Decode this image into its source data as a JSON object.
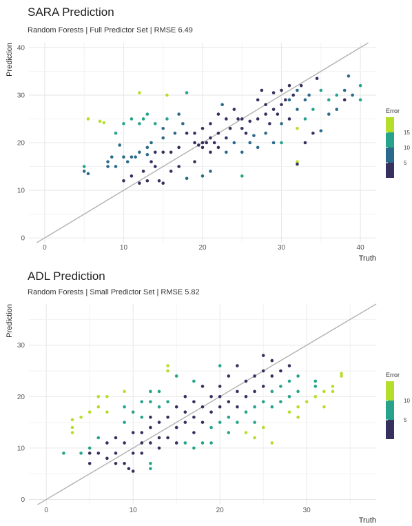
{
  "chart_data": [
    {
      "type": "scatter",
      "title": "SARA Prediction",
      "subtitle": "Random Forests | Full Predictor Set | RMSE 6.49",
      "xlabel": "Truth",
      "ylabel": "Prediction",
      "xlim": [
        -2,
        42
      ],
      "ylim": [
        -1,
        41
      ],
      "xticks": [
        0,
        10,
        20,
        30,
        40
      ],
      "yticks": [
        0,
        10,
        20,
        30,
        40
      ],
      "grid": true,
      "reference_line": "y = x",
      "legend": {
        "title": "Error",
        "placement": "right",
        "labels": [
          15,
          10,
          5
        ],
        "colors": [
          "#35305e",
          "#2b6a8a",
          "#26a38a",
          "#b5de2b"
        ]
      },
      "points": [
        [
          5,
          15
        ],
        [
          5,
          14
        ],
        [
          5.5,
          13.5
        ],
        [
          5.5,
          25
        ],
        [
          7,
          24.5
        ],
        [
          7.5,
          24.2
        ],
        [
          8,
          15
        ],
        [
          8,
          16
        ],
        [
          8.5,
          17
        ],
        [
          9,
          15
        ],
        [
          9,
          22
        ],
        [
          9.5,
          19.5
        ],
        [
          10,
          17
        ],
        [
          10,
          24
        ],
        [
          10,
          12
        ],
        [
          10.5,
          16
        ],
        [
          11,
          13
        ],
        [
          11,
          17
        ],
        [
          11,
          25
        ],
        [
          11.5,
          17
        ],
        [
          12,
          24
        ],
        [
          12,
          30.5
        ],
        [
          12,
          18
        ],
        [
          12,
          11.5
        ],
        [
          12.5,
          25
        ],
        [
          12.5,
          14
        ],
        [
          13,
          26
        ],
        [
          13,
          19
        ],
        [
          13,
          17.5
        ],
        [
          13,
          12
        ],
        [
          13.5,
          20
        ],
        [
          13.5,
          16
        ],
        [
          14,
          24
        ],
        [
          14,
          18
        ],
        [
          14,
          15
        ],
        [
          14.5,
          12
        ],
        [
          15,
          18
        ],
        [
          15,
          23
        ],
        [
          15,
          21
        ],
        [
          15,
          11.5
        ],
        [
          15.5,
          25
        ],
        [
          15.5,
          30
        ],
        [
          16,
          18
        ],
        [
          16,
          14
        ],
        [
          16.5,
          22
        ],
        [
          17,
          26
        ],
        [
          17,
          19
        ],
        [
          17,
          15
        ],
        [
          17.5,
          24
        ],
        [
          18,
          30.5
        ],
        [
          18,
          22
        ],
        [
          18,
          12.5
        ],
        [
          19,
          16
        ],
        [
          19,
          20
        ],
        [
          19,
          22
        ],
        [
          19.5,
          19.5
        ],
        [
          20,
          20
        ],
        [
          20,
          23
        ],
        [
          20,
          19
        ],
        [
          20,
          13
        ],
        [
          20.5,
          20
        ],
        [
          21,
          24
        ],
        [
          21,
          21
        ],
        [
          21,
          18
        ],
        [
          21,
          14
        ],
        [
          21.5,
          20
        ],
        [
          22,
          26
        ],
        [
          22,
          22
        ],
        [
          22,
          19
        ],
        [
          22.5,
          28
        ],
        [
          23,
          25
        ],
        [
          23,
          21
        ],
        [
          23,
          18
        ],
        [
          23.5,
          23
        ],
        [
          24,
          27
        ],
        [
          24,
          20
        ],
        [
          24.5,
          25
        ],
        [
          25,
          25
        ],
        [
          25,
          23
        ],
        [
          25,
          18
        ],
        [
          25,
          13
        ],
        [
          25.5,
          22
        ],
        [
          26,
          24.5
        ],
        [
          26,
          20
        ],
        [
          26.5,
          21.5
        ],
        [
          27,
          25
        ],
        [
          27,
          29
        ],
        [
          27,
          19
        ],
        [
          27.5,
          31
        ],
        [
          28,
          28
        ],
        [
          28,
          26
        ],
        [
          28,
          22
        ],
        [
          28.5,
          24
        ],
        [
          29,
          30.5
        ],
        [
          29,
          27
        ],
        [
          29,
          20
        ],
        [
          29.5,
          26
        ],
        [
          30,
          31
        ],
        [
          30,
          28
        ],
        [
          30,
          24
        ],
        [
          30,
          20
        ],
        [
          30.5,
          29
        ],
        [
          31,
          32
        ],
        [
          31,
          29
        ],
        [
          31,
          25
        ],
        [
          31.5,
          30
        ],
        [
          32,
          31
        ],
        [
          32,
          27
        ],
        [
          32,
          23
        ],
        [
          32,
          16
        ],
        [
          32,
          15.5
        ],
        [
          32.5,
          32
        ],
        [
          33,
          29
        ],
        [
          33,
          25
        ],
        [
          33,
          20
        ],
        [
          33.5,
          30
        ],
        [
          34,
          27
        ],
        [
          34,
          22
        ],
        [
          34.5,
          33.5
        ],
        [
          35,
          31
        ],
        [
          35,
          22.5
        ],
        [
          36,
          29
        ],
        [
          36,
          26
        ],
        [
          37,
          30
        ],
        [
          37,
          27
        ],
        [
          38,
          31
        ],
        [
          38,
          29
        ],
        [
          38.5,
          34
        ],
        [
          39,
          30
        ],
        [
          40,
          32
        ],
        [
          40,
          29
        ]
      ],
      "errors": [
        10,
        9,
        8,
        19,
        17,
        16,
        6,
        6,
        7,
        5,
        12,
        8,
        6,
        14,
        2,
        5,
        2,
        5,
        13,
        5,
        12,
        18,
        6,
        1,
        12,
        2,
        13,
        6,
        5,
        1,
        6,
        2,
        10,
        4,
        1,
        3,
        3,
        8,
        6,
        4,
        10,
        15,
        2,
        2,
        5,
        9,
        2,
        2,
        7,
        13,
        4,
        6,
        3,
        1,
        3,
        0,
        0,
        3,
        1,
        7,
        0,
        3,
        0,
        3,
        7,
        2,
        4,
        0,
        3,
        6,
        2,
        2,
        5,
        0,
        3,
        5,
        0,
        0,
        2,
        7,
        12,
        3,
        2,
        6,
        5,
        2,
        2,
        8,
        4,
        0,
        2,
        6,
        4,
        2,
        2,
        9,
        3,
        1,
        4,
        6,
        10,
        2,
        0,
        6,
        1,
        1,
        5,
        9,
        16,
        17,
        1,
        4,
        8,
        13,
        4,
        7,
        12,
        1,
        4,
        13,
        7,
        10,
        7,
        10,
        7,
        9,
        4,
        9,
        8,
        11
      ]
    },
    {
      "type": "scatter",
      "title": "ADL Prediction",
      "subtitle": "Random Forests | Small Predictor Set | RMSE 5.82",
      "xlabel": "Truth",
      "ylabel": "Prediction",
      "xlim": [
        -2,
        38
      ],
      "ylim": [
        -1,
        38
      ],
      "xticks": [
        0,
        10,
        20,
        30
      ],
      "yticks": [
        0,
        10,
        20,
        30
      ],
      "grid": true,
      "reference_line": "y = x",
      "legend": {
        "title": "Error",
        "placement": "right",
        "labels": [
          10,
          5
        ],
        "colors": [
          "#35305e",
          "#26a38a",
          "#b5de2b"
        ]
      },
      "points": [
        [
          2,
          9
        ],
        [
          3,
          14
        ],
        [
          3,
          15.5
        ],
        [
          3,
          13
        ],
        [
          4,
          16
        ],
        [
          4,
          9
        ],
        [
          5,
          17
        ],
        [
          5,
          10
        ],
        [
          5,
          9
        ],
        [
          5,
          7
        ],
        [
          6,
          18
        ],
        [
          6,
          20
        ],
        [
          6,
          12
        ],
        [
          6,
          9
        ],
        [
          7,
          20
        ],
        [
          7,
          17
        ],
        [
          7,
          11
        ],
        [
          7,
          8
        ],
        [
          8,
          12
        ],
        [
          8,
          9
        ],
        [
          8,
          7
        ],
        [
          9,
          21
        ],
        [
          9,
          18
        ],
        [
          9,
          15
        ],
        [
          9,
          11
        ],
        [
          9,
          7
        ],
        [
          9.5,
          6
        ],
        [
          10,
          17
        ],
        [
          10,
          13
        ],
        [
          10,
          9
        ],
        [
          10,
          5.5
        ],
        [
          11,
          19
        ],
        [
          11,
          16
        ],
        [
          11,
          13
        ],
        [
          11,
          11
        ],
        [
          11,
          9
        ],
        [
          12,
          21
        ],
        [
          12,
          19
        ],
        [
          12,
          16
        ],
        [
          12,
          14
        ],
        [
          12,
          11
        ],
        [
          12,
          7
        ],
        [
          12,
          6
        ],
        [
          13,
          21
        ],
        [
          13,
          18
        ],
        [
          13,
          15
        ],
        [
          13,
          12
        ],
        [
          13,
          10
        ],
        [
          14,
          26
        ],
        [
          14,
          25
        ],
        [
          14,
          19
        ],
        [
          14,
          16
        ],
        [
          14,
          12
        ],
        [
          15,
          24
        ],
        [
          15,
          18
        ],
        [
          15,
          14
        ],
        [
          15,
          11
        ],
        [
          16,
          20
        ],
        [
          16,
          17
        ],
        [
          16,
          15
        ],
        [
          16,
          11
        ],
        [
          17,
          23
        ],
        [
          17,
          19
        ],
        [
          17,
          16
        ],
        [
          17,
          13
        ],
        [
          17,
          10
        ],
        [
          18,
          22
        ],
        [
          18,
          18
        ],
        [
          18,
          15
        ],
        [
          18,
          11
        ],
        [
          19,
          20
        ],
        [
          19,
          17
        ],
        [
          19,
          14
        ],
        [
          19,
          11
        ],
        [
          20,
          26
        ],
        [
          20,
          22
        ],
        [
          20,
          20
        ],
        [
          20,
          18
        ],
        [
          20,
          15
        ],
        [
          21,
          24
        ],
        [
          21,
          19
        ],
        [
          21,
          16
        ],
        [
          21,
          13
        ],
        [
          22,
          26
        ],
        [
          22,
          21
        ],
        [
          22,
          18
        ],
        [
          22,
          15
        ],
        [
          23,
          23
        ],
        [
          23,
          20
        ],
        [
          23,
          17
        ],
        [
          23,
          13
        ],
        [
          24,
          24
        ],
        [
          24,
          21
        ],
        [
          24,
          18
        ],
        [
          24,
          15
        ],
        [
          24,
          12
        ],
        [
          25,
          28
        ],
        [
          25,
          25
        ],
        [
          25,
          22
        ],
        [
          25,
          19
        ],
        [
          25,
          14
        ],
        [
          26,
          27
        ],
        [
          26,
          24
        ],
        [
          26,
          21
        ],
        [
          26,
          18
        ],
        [
          26,
          11
        ],
        [
          27,
          25
        ],
        [
          27,
          22
        ],
        [
          27,
          19
        ],
        [
          28,
          26
        ],
        [
          28,
          23
        ],
        [
          28,
          20
        ],
        [
          28,
          17
        ],
        [
          29,
          24
        ],
        [
          29,
          21
        ],
        [
          29,
          18
        ],
        [
          29,
          16
        ],
        [
          30,
          19
        ],
        [
          31,
          20
        ],
        [
          31,
          22
        ],
        [
          31,
          23
        ],
        [
          32,
          21
        ],
        [
          32,
          18
        ],
        [
          33,
          22
        ],
        [
          33,
          21
        ],
        [
          34,
          24
        ],
        [
          34,
          24.5
        ]
      ],
      "errors": [
        7,
        11,
        12,
        10,
        12,
        5,
        12,
        5,
        4,
        2,
        12,
        14,
        6,
        3,
        13,
        10,
        4,
        1,
        4,
        1,
        1,
        12,
        9,
        6,
        2,
        2,
        3,
        7,
        3,
        1,
        4,
        8,
        5,
        2,
        0,
        2,
        9,
        7,
        4,
        2,
        1,
        5,
        6,
        8,
        5,
        2,
        1,
        3,
        12,
        11,
        5,
        2,
        2,
        9,
        3,
        1,
        4,
        4,
        1,
        1,
        5,
        6,
        2,
        1,
        4,
        7,
        4,
        0,
        3,
        7,
        1,
        2,
        5,
        8,
        6,
        2,
        0,
        2,
        5,
        3,
        2,
        5,
        8,
        4,
        1,
        4,
        7,
        0,
        3,
        6,
        10,
        0,
        3,
        6,
        9,
        12,
        3,
        0,
        3,
        6,
        11,
        1,
        2,
        5,
        8,
        15,
        2,
        5,
        8,
        2,
        5,
        8,
        11,
        5,
        8,
        11,
        13,
        11,
        11,
        9,
        8,
        11,
        14,
        11,
        12,
        10,
        10
      ]
    }
  ]
}
